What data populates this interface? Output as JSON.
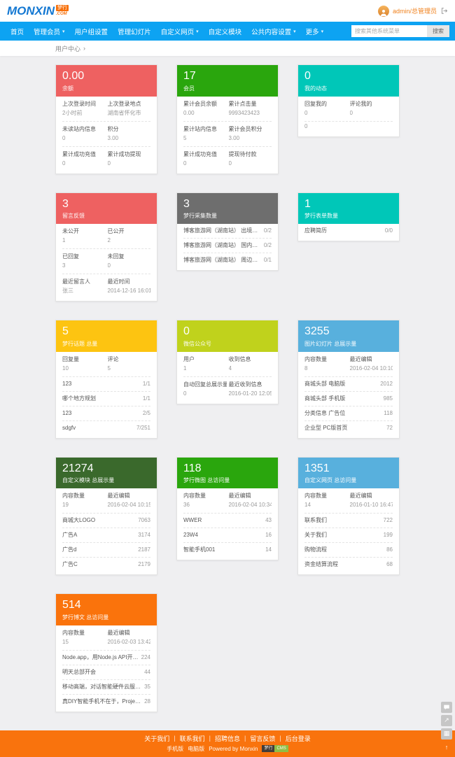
{
  "header": {
    "logo": {
      "main": "MONXIN",
      "tag": "梦行",
      "com": ".COM"
    },
    "user": {
      "name": "admin/总管理员"
    }
  },
  "nav": {
    "caret": "▾",
    "items": [
      {
        "label": "首页",
        "dropdown": false
      },
      {
        "label": "管理会员",
        "dropdown": true
      },
      {
        "label": "用户组设置",
        "dropdown": false
      },
      {
        "label": "管理幻灯片",
        "dropdown": false
      },
      {
        "label": "自定义网页",
        "dropdown": true
      },
      {
        "label": "自定义模块",
        "dropdown": false
      },
      {
        "label": "公共内容设置",
        "dropdown": true
      },
      {
        "label": "更多",
        "dropdown": true
      }
    ],
    "search": {
      "placeholder": "搜索其他系统菜单",
      "button": "搜索"
    }
  },
  "breadcrumb": {
    "text": "用户中心",
    "arrow": "›"
  },
  "cards": [
    {
      "color": "#ee6161",
      "number": "0.00",
      "label": "余额",
      "rows": [
        {
          "t": "h",
          "l": "上次登录时间",
          "r": "上次登录地点"
        },
        {
          "t": "v",
          "l": "2小时前",
          "r": "湖南省怀化市"
        },
        {
          "t": "h",
          "l": "未读站内信息",
          "r": "积分"
        },
        {
          "t": "v",
          "l": "0",
          "r": "3.00"
        },
        {
          "t": "h",
          "l": "累计成功充值",
          "r": "累计成功提现"
        },
        {
          "t": "v",
          "l": "0",
          "r": "0"
        }
      ]
    },
    {
      "color": "#2aa60d",
      "number": "17",
      "label": "会员",
      "rows": [
        {
          "t": "h",
          "l": "累计会员余额",
          "r": "累计点击量"
        },
        {
          "t": "v",
          "l": "0.00",
          "r": "9993423423"
        },
        {
          "t": "h",
          "l": "累计站内信息",
          "r": "累计会员积分"
        },
        {
          "t": "v",
          "l": "5",
          "r": "3.00"
        },
        {
          "t": "h",
          "l": "累计成功充值",
          "r": "提现待付款"
        },
        {
          "t": "v",
          "l": "0",
          "r": "0"
        }
      ]
    },
    {
      "color": "#00c7b8",
      "number": "0",
      "label": "我的动态",
      "rows": [
        {
          "t": "h",
          "l": "回复我的",
          "r": "评论我的"
        },
        {
          "t": "v",
          "l": "0",
          "r": "0"
        },
        {
          "t": "v",
          "l": "0",
          "r": ""
        }
      ]
    },
    {
      "color": "#ee6161",
      "number": "3",
      "label": "留言反馈",
      "rows": [
        {
          "t": "h",
          "l": "未公开",
          "r": "已公开"
        },
        {
          "t": "v",
          "l": "1",
          "r": "2"
        },
        {
          "t": "h",
          "l": "已回复",
          "r": "未回复"
        },
        {
          "t": "v",
          "l": "3",
          "r": "0"
        },
        {
          "t": "h",
          "l": "最近留言人",
          "r": "最近时间"
        },
        {
          "t": "v",
          "l": "张三",
          "r": "2014-12-16 16:01"
        }
      ]
    },
    {
      "color": "#6e6e6e",
      "number": "3",
      "label": "梦行采集数量",
      "rows": [
        {
          "t": "i",
          "l": "博客旅游网（湖南站） 出境线路 东…",
          "r": "0/2"
        },
        {
          "t": "i",
          "l": "博客旅游网（湖南站） 国内线路 梅…",
          "r": "0/2"
        },
        {
          "t": "i",
          "l": "博客旅游网（湖南站） 周边线路 张…",
          "r": "0/1"
        }
      ]
    },
    {
      "color": "#00c7b8",
      "number": "1",
      "label": "梦行表单数量",
      "rows": [
        {
          "t": "i",
          "l": "应聘简历",
          "r": "0/0"
        }
      ]
    },
    {
      "color": "#fdc411",
      "number": "5",
      "label": "梦行话题 总量",
      "rows": [
        {
          "t": "h",
          "l": "回复量",
          "r": "评论"
        },
        {
          "t": "v",
          "l": "10",
          "r": "5"
        },
        {
          "t": "i",
          "l": "123",
          "r": "1/1"
        },
        {
          "t": "i",
          "l": "哪个地方规划",
          "r": "1/1"
        },
        {
          "t": "i",
          "l": "123",
          "r": "2/5"
        },
        {
          "t": "i",
          "l": "sdgfv",
          "r": "7/251"
        }
      ]
    },
    {
      "color": "#c0d21c",
      "number": "0",
      "label": "微信公众号",
      "rows": [
        {
          "t": "h",
          "l": "用户",
          "r": "收到信息"
        },
        {
          "t": "v",
          "l": "1",
          "r": "4"
        },
        {
          "t": "h",
          "l": "自动回复总展示量",
          "r": "最近收到信息"
        },
        {
          "t": "v",
          "l": "0",
          "r": "2016-01-20 12:05"
        }
      ]
    },
    {
      "color": "#58b0dd",
      "number": "3255",
      "label": "图片幻灯片 总展示量",
      "rows": [
        {
          "t": "h",
          "l": "内容数量",
          "r": "最近编辑"
        },
        {
          "t": "v",
          "l": "8",
          "r": "2016-02-04 10:10"
        },
        {
          "t": "i",
          "l": "商城头部 电脑版",
          "r": "2012"
        },
        {
          "t": "i",
          "l": "商城头部 手机版",
          "r": "985"
        },
        {
          "t": "i",
          "l": "分类信息 广告位",
          "r": "118"
        },
        {
          "t": "i",
          "l": "企业型 PC版首页",
          "r": "72"
        }
      ]
    },
    {
      "color": "#3a692c",
      "number": "21274",
      "label": "自定义模块 总展示量",
      "rows": [
        {
          "t": "h",
          "l": "内容数量",
          "r": "最近编辑"
        },
        {
          "t": "v",
          "l": "19",
          "r": "2016-02-04 10:15"
        },
        {
          "t": "i",
          "l": "商城大LOGO",
          "r": "7063"
        },
        {
          "t": "i",
          "l": "广告A",
          "r": "3174"
        },
        {
          "t": "i",
          "l": "广告d",
          "r": "2187"
        },
        {
          "t": "i",
          "l": "广告C",
          "r": "2179"
        }
      ]
    },
    {
      "color": "#2aa60d",
      "number": "118",
      "label": "梦行微图 总访问量",
      "rows": [
        {
          "t": "h",
          "l": "内容数量",
          "r": "最近编辑"
        },
        {
          "t": "v",
          "l": "36",
          "r": "2016-02-04 10:34"
        },
        {
          "t": "i",
          "l": "WWER",
          "r": "43"
        },
        {
          "t": "i",
          "l": "23W4",
          "r": "16"
        },
        {
          "t": "i",
          "l": "智能手机001",
          "r": "14"
        }
      ]
    },
    {
      "color": "#58b0dd",
      "number": "1351",
      "label": "自定义网页 总访问量",
      "rows": [
        {
          "t": "h",
          "l": "内容数量",
          "r": "最近编辑"
        },
        {
          "t": "v",
          "l": "14",
          "r": "2016-01-10 16:47"
        },
        {
          "t": "i",
          "l": "联系我们",
          "r": "722"
        },
        {
          "t": "i",
          "l": "关于我们",
          "r": "199"
        },
        {
          "t": "i",
          "l": "购物流程",
          "r": "86"
        },
        {
          "t": "i",
          "l": "资金结算流程",
          "r": "68"
        }
      ]
    },
    {
      "color": "#fa730c",
      "number": "514",
      "label": "梦行博文 总访问量",
      "rows": [
        {
          "t": "h",
          "l": "内容数量",
          "r": "最近编辑"
        },
        {
          "t": "v",
          "l": "15",
          "r": "2016-02-03 13:42"
        },
        {
          "t": "i",
          "l": "Node.app，用Node.js API开发的…",
          "r": "224"
        },
        {
          "t": "i",
          "l": "明天总部开会",
          "r": "44"
        },
        {
          "t": "i",
          "l": "移动高端，对话智能硬件云服务平…",
          "r": "35"
        },
        {
          "t": "i",
          "l": "真DIY智能手机不在于，Project Ar…",
          "r": "28"
        }
      ]
    }
  ],
  "floating": {
    "buttons": [
      "chat",
      "share",
      "qrcode",
      "back-to-top"
    ]
  },
  "footer": {
    "separator": "|",
    "links": [
      "关于我们",
      "联系我们",
      "招聘信息",
      "留言反馈",
      "后台登录"
    ],
    "modes": [
      "手机版",
      "电脑版"
    ],
    "powered": "Powered by Monxin",
    "badge": {
      "left": "梦行",
      "right": "CMS"
    }
  }
}
